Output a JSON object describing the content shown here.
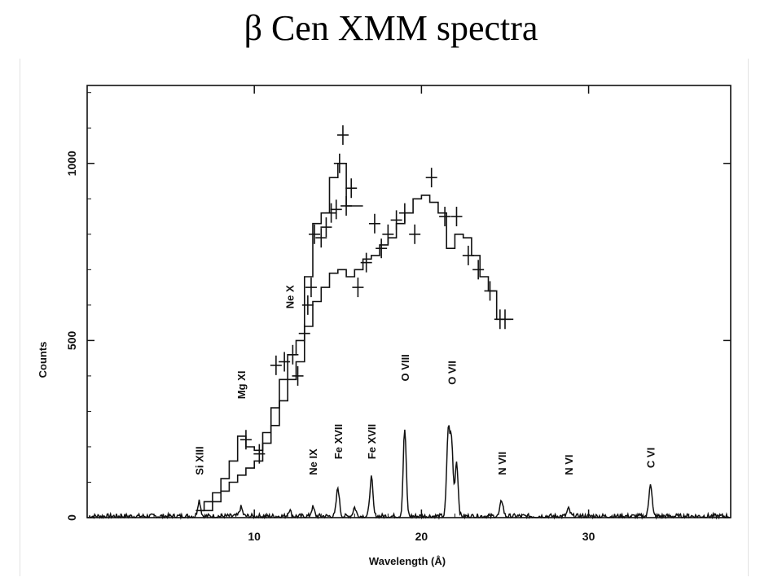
{
  "title": "β Cen XMM spectra",
  "chart_data": {
    "type": "line",
    "xlabel": "Wavelength (Å)",
    "ylabel": "Counts",
    "xlim": [
      0,
      38.5
    ],
    "ylim": [
      0,
      1220
    ],
    "x_ticks": [
      {
        "value": 10,
        "label": "10"
      },
      {
        "value": 20,
        "label": "20"
      },
      {
        "value": 30,
        "label": "30"
      }
    ],
    "y_ticks": [
      {
        "value": 0,
        "label": "0"
      },
      {
        "value": 500,
        "label": "500"
      },
      {
        "value": 1000,
        "label": "1000"
      }
    ],
    "grid": false,
    "line_labels": [
      {
        "label": "Si XIII",
        "x": 6.7,
        "y": 120
      },
      {
        "label": "Mg XI",
        "x": 9.2,
        "y": 335
      },
      {
        "label": "Ne X",
        "x": 12.1,
        "y": 590
      },
      {
        "label": "Ne IX",
        "x": 13.5,
        "y": 120
      },
      {
        "label": "Fe XVII",
        "x": 15.0,
        "y": 165
      },
      {
        "label": "Fe XVII",
        "x": 17.0,
        "y": 165
      },
      {
        "label": "O VIII",
        "x": 19.0,
        "y": 385
      },
      {
        "label": "O VII",
        "x": 21.8,
        "y": 375
      },
      {
        "label": "N VII",
        "x": 24.8,
        "y": 120
      },
      {
        "label": "N VI",
        "x": 28.8,
        "y": 120
      },
      {
        "label": "C VI",
        "x": 33.7,
        "y": 140
      }
    ],
    "series": [
      {
        "type": "step",
        "x": [
          6.5,
          7,
          7.5,
          8,
          8.5,
          9,
          9.5,
          10,
          10.5,
          11,
          11.5,
          12,
          12.5,
          13,
          13.5,
          14,
          14.5,
          15,
          15.5,
          16
        ],
        "values": [
          20,
          45,
          70,
          110,
          160,
          230,
          200,
          190,
          240,
          310,
          390,
          460,
          500,
          680,
          830,
          860,
          960,
          1000,
          880,
          880
        ]
      },
      {
        "type": "step",
        "x": [
          6.8,
          7.5,
          8,
          8.5,
          9,
          9.5,
          10,
          10.5,
          11,
          11.5,
          12,
          12.5,
          13,
          13.5,
          14,
          14.5,
          15,
          15.5,
          16,
          16.5,
          17,
          17.5,
          18,
          18.5,
          19,
          19.5,
          20,
          20.5,
          21,
          21.5,
          22,
          22.5,
          23,
          23.5,
          24,
          24.5,
          25
        ],
        "values": [
          20,
          45,
          75,
          100,
          120,
          140,
          160,
          210,
          260,
          330,
          390,
          440,
          540,
          610,
          650,
          690,
          700,
          680,
          700,
          730,
          740,
          770,
          790,
          830,
          860,
          900,
          910,
          890,
          860,
          760,
          800,
          790,
          740,
          680,
          640,
          560,
          560
        ]
      },
      {
        "type": "errorbars",
        "x": [
          9.5,
          10.3,
          11.3,
          11.8,
          12.3,
          12.6,
          13.0,
          13.2,
          13.4,
          13.6,
          14.0,
          14.3,
          14.6,
          14.9,
          15.1,
          15.3,
          15.5,
          15.8,
          16.2,
          16.7,
          17.2,
          17.6,
          18.0,
          18.5,
          19.0,
          19.6,
          20.6,
          21.4,
          22.1,
          22.8,
          23.4,
          24.1,
          24.7,
          25.0
        ],
        "values": [
          220,
          180,
          430,
          440,
          460,
          400,
          520,
          600,
          650,
          800,
          790,
          820,
          860,
          870,
          1000,
          1080,
          880,
          930,
          650,
          720,
          830,
          760,
          800,
          840,
          860,
          800,
          960,
          850,
          850,
          740,
          700,
          640,
          560,
          560
        ]
      },
      {
        "type": "line",
        "peaks": [
          {
            "x": 6.7,
            "value": 45
          },
          {
            "x": 9.2,
            "value": 25
          },
          {
            "x": 12.1,
            "value": 18
          },
          {
            "x": 13.5,
            "value": 25
          },
          {
            "x": 15.0,
            "value": 80
          },
          {
            "x": 16.0,
            "value": 25
          },
          {
            "x": 17.0,
            "value": 110
          },
          {
            "x": 19.0,
            "value": 245
          },
          {
            "x": 21.6,
            "value": 235
          },
          {
            "x": 21.8,
            "value": 205
          },
          {
            "x": 22.1,
            "value": 155
          },
          {
            "x": 24.8,
            "value": 45
          },
          {
            "x": 28.8,
            "value": 20
          },
          {
            "x": 33.7,
            "value": 95
          }
        ]
      }
    ]
  }
}
